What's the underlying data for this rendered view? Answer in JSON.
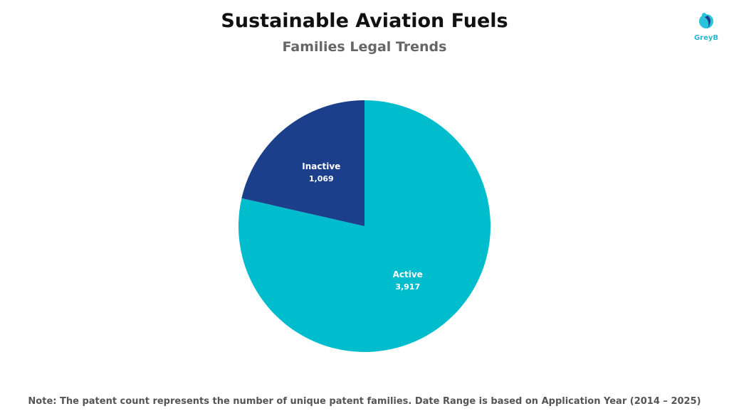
{
  "header": {
    "title": "Sustainable Aviation Fuels",
    "subtitle": "Families Legal Trends"
  },
  "logo": {
    "text": "GreyB"
  },
  "note": "Note: The patent count represents the number of unique patent families. Date Range is based on Application Year (2014 – 2025)",
  "chart_data": {
    "type": "pie",
    "title": "Sustainable Aviation Fuels",
    "subtitle": "Families Legal Trends",
    "slices": [
      {
        "label": "Active",
        "value": 3917,
        "display": "3,917",
        "color": "#00BDCE"
      },
      {
        "label": "Inactive",
        "value": 1069,
        "display": "1,069",
        "color": "#1B3F8B"
      }
    ],
    "start": "12 o'clock",
    "direction": "clockwise"
  }
}
